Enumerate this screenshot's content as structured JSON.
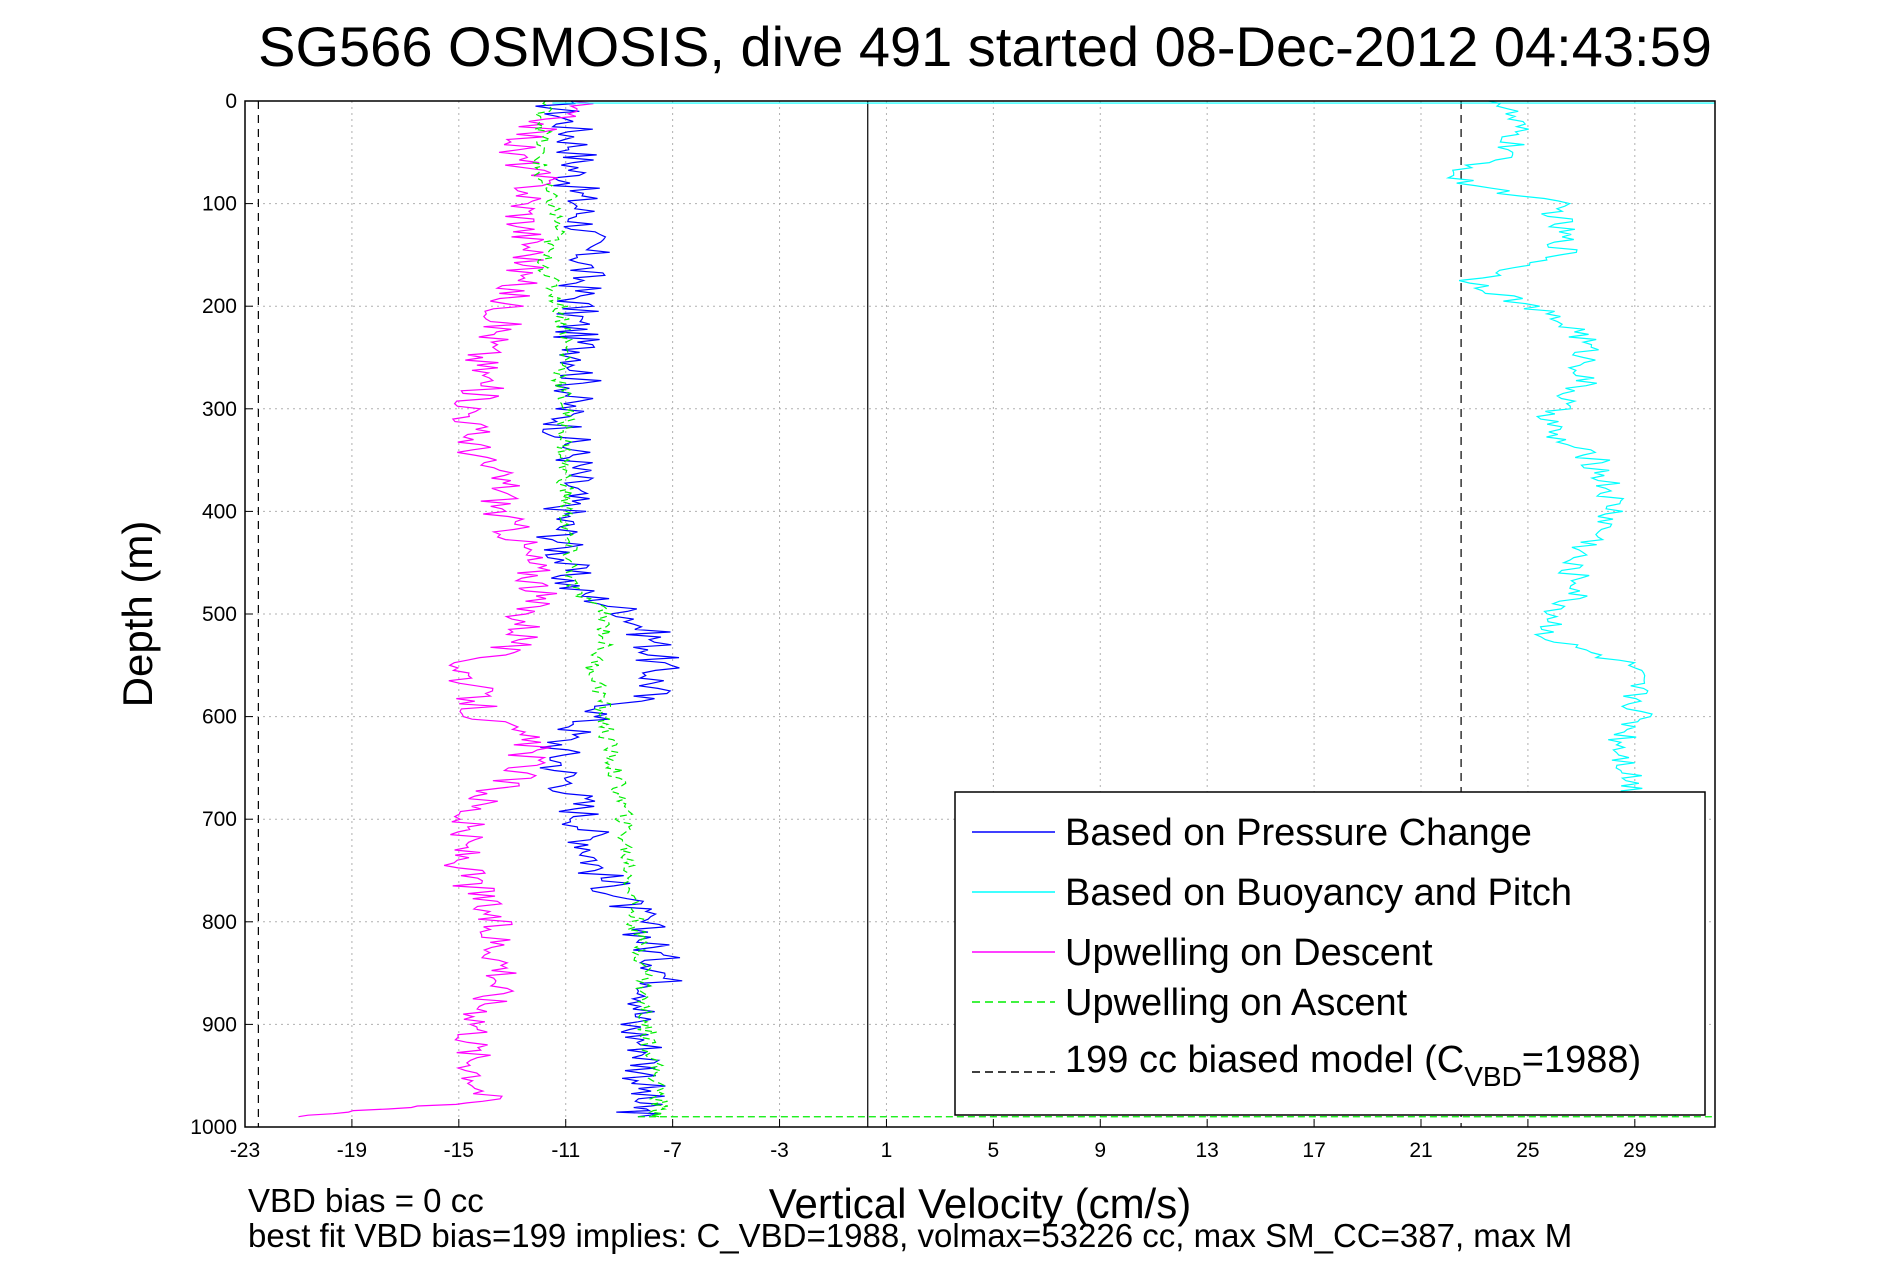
{
  "chart_data": {
    "type": "line",
    "title": "SG566 OSMOSIS, dive 491 started 08-Dec-2012 04:43:59",
    "xlabel": "Vertical Velocity (cm/s)",
    "ylabel": "Depth (m)",
    "xlim": [
      -23,
      32
    ],
    "ylim": [
      0,
      1000
    ],
    "y_reversed": true,
    "xticks": [
      -23,
      -19,
      -15,
      -11,
      -7,
      -3,
      1,
      5,
      9,
      13,
      17,
      21,
      25,
      29
    ],
    "yticks": [
      0,
      100,
      200,
      300,
      400,
      500,
      600,
      700,
      800,
      900,
      1000
    ],
    "grid": true,
    "legend_position": "bottom-right",
    "depth_levels": [
      0,
      25,
      50,
      75,
      100,
      125,
      150,
      175,
      200,
      225,
      250,
      275,
      300,
      325,
      350,
      375,
      400,
      425,
      450,
      475,
      500,
      525,
      550,
      575,
      600,
      625,
      650,
      675,
      700,
      725,
      750,
      775,
      800,
      825,
      850,
      875,
      900,
      925,
      950,
      975,
      990
    ],
    "series": [
      {
        "name": "Based on Pressure Change",
        "color": "#0000ff",
        "style": "solid",
        "x": [
          -11.5,
          -10.8,
          -10.5,
          -10.7,
          -10.5,
          -10.3,
          -10.2,
          -10.4,
          -10.6,
          -10.7,
          -10.3,
          -10.5,
          -11.0,
          -11.0,
          -10.6,
          -10.8,
          -11.0,
          -11.2,
          -11.0,
          -10.8,
          -8.5,
          -7.7,
          -7.6,
          -7.7,
          -10.0,
          -11.2,
          -11.2,
          -10.7,
          -10.3,
          -10.0,
          -9.8,
          -9.0,
          -8.2,
          -7.8,
          -7.2,
          -7.7,
          -8.6,
          -7.9,
          -8.0,
          -8.2,
          -8.3
        ],
        "y": [
          0,
          25,
          50,
          75,
          100,
          125,
          150,
          175,
          200,
          225,
          250,
          275,
          300,
          325,
          350,
          375,
          400,
          425,
          450,
          475,
          500,
          525,
          550,
          575,
          600,
          625,
          650,
          675,
          700,
          725,
          750,
          775,
          800,
          825,
          850,
          875,
          900,
          925,
          950,
          975,
          990
        ]
      },
      {
        "name": "Based on Buoyancy and Pitch",
        "color": "#00ffff",
        "style": "solid",
        "x": [
          24.0,
          24.5,
          24.3,
          22.0,
          26.0,
          26.2,
          26.4,
          23.0,
          25.0,
          27.0,
          27.2,
          27.0,
          26.0,
          25.8,
          27.5,
          28.0,
          28.2,
          27.6,
          26.5,
          27.0,
          26.0,
          25.8,
          28.8,
          29.0,
          29.2,
          28.5,
          28.8,
          29.0,
          29.2,
          29.2,
          29.3,
          29.3,
          29.4,
          29.4,
          29.5,
          29.6,
          29.7,
          30.0,
          30.4,
          30.5,
          30.5
        ],
        "y": [
          0,
          25,
          50,
          75,
          100,
          125,
          150,
          175,
          200,
          225,
          250,
          275,
          300,
          325,
          350,
          375,
          400,
          425,
          450,
          475,
          500,
          525,
          550,
          575,
          600,
          625,
          650,
          675,
          700,
          725,
          750,
          775,
          800,
          825,
          850,
          875,
          900,
          925,
          950,
          975,
          990
        ]
      },
      {
        "name": "Upwelling on Descent",
        "color": "#ff00ff",
        "style": "solid",
        "x": [
          -10.5,
          -12.0,
          -13.0,
          -12.0,
          -12.5,
          -12.5,
          -12.2,
          -12.8,
          -13.2,
          -13.5,
          -14.2,
          -14.0,
          -14.5,
          -14.5,
          -14.2,
          -13.2,
          -13.5,
          -12.8,
          -12.3,
          -12.0,
          -12.5,
          -12.5,
          -14.8,
          -14.5,
          -14.2,
          -12.3,
          -12.5,
          -13.8,
          -14.8,
          -14.8,
          -14.8,
          -14.2,
          -13.8,
          -13.5,
          -13.2,
          -13.8,
          -14.2,
          -14.5,
          -14.2,
          -14.0,
          -21.0
        ],
        "y": [
          0,
          25,
          50,
          75,
          100,
          125,
          150,
          175,
          200,
          225,
          250,
          275,
          300,
          325,
          350,
          375,
          400,
          425,
          450,
          475,
          500,
          525,
          550,
          575,
          600,
          625,
          650,
          675,
          700,
          725,
          750,
          775,
          800,
          825,
          850,
          875,
          900,
          925,
          950,
          975,
          990
        ]
      },
      {
        "name": "Upwelling on Ascent",
        "color": "#00ee00",
        "style": "dashed",
        "x": [
          -11.8,
          -11.8,
          -12.0,
          -12.0,
          -11.5,
          -11.3,
          -11.8,
          -11.6,
          -11.2,
          -11.0,
          -11.0,
          -11.2,
          -11.0,
          -11.0,
          -11.1,
          -11.0,
          -11.0,
          -11.0,
          -10.8,
          -10.8,
          -9.5,
          -9.5,
          -10.0,
          -9.7,
          -9.6,
          -9.4,
          -9.2,
          -9.0,
          -8.8,
          -8.8,
          -8.6,
          -8.5,
          -8.4,
          -8.2,
          -8.0,
          -8.1,
          -8.0,
          -7.8,
          -7.6,
          -7.5,
          -7.5
        ],
        "y": [
          0,
          25,
          50,
          75,
          100,
          125,
          150,
          175,
          200,
          225,
          250,
          275,
          300,
          325,
          350,
          375,
          400,
          425,
          450,
          475,
          500,
          525,
          550,
          575,
          600,
          625,
          650,
          675,
          700,
          725,
          750,
          775,
          800,
          825,
          850,
          875,
          900,
          925,
          950,
          975,
          990
        ]
      },
      {
        "name": "199 cc biased model",
        "color": "#000000",
        "style": "dashed",
        "x": [
          -22.5,
          -22.5
        ],
        "y": [
          0,
          1000
        ]
      }
    ],
    "model_lines": [
      {
        "x": -22.5,
        "style": "dashed"
      },
      {
        "x": 0.3,
        "style": "solid"
      },
      {
        "x": 22.5,
        "style": "dashed"
      }
    ],
    "legend": {
      "entries": [
        "Based on Pressure Change",
        "Based on Buoyancy and Pitch",
        "Upwelling on Descent",
        "Upwelling on Ascent"
      ],
      "model_entry_prefix": "199 cc biased model (C",
      "model_entry_sub": "VBD",
      "model_entry_suffix": "=1988)"
    },
    "annotations": [
      "VBD bias = 0 cc",
      "best fit VBD bias=199 implies: C_VBD=1988, volmax=53226 cc, max SM_CC=387, max M"
    ]
  }
}
